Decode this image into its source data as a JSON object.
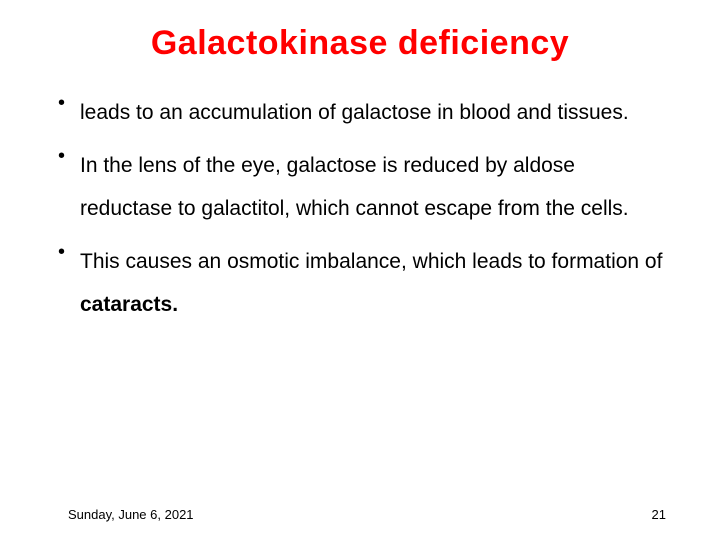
{
  "title": {
    "text": "Galactokinase deficiency",
    "color": "#ff0000",
    "fontsize": 34
  },
  "body": {
    "color": "#000000",
    "fontsize": 21,
    "line_height": 2.05
  },
  "bullets": [
    {
      "parts": [
        {
          "text": "leads to an accumulation of galactose in blood and tissues.",
          "bold": false
        }
      ]
    },
    {
      "parts": [
        {
          "text": "In the lens of the eye, galactose is reduced by aldose reductase to galactitol, which cannot escape from the cells.",
          "bold": false
        }
      ]
    },
    {
      "parts": [
        {
          "text": "This causes an osmotic imbalance, which leads to formation of ",
          "bold": false
        },
        {
          "text": "cataracts.",
          "bold": true
        }
      ]
    }
  ],
  "footer": {
    "date": "Sunday, June 6, 2021",
    "page": "21",
    "fontsize": 13,
    "color": "#000000"
  },
  "background_color": "#ffffff"
}
